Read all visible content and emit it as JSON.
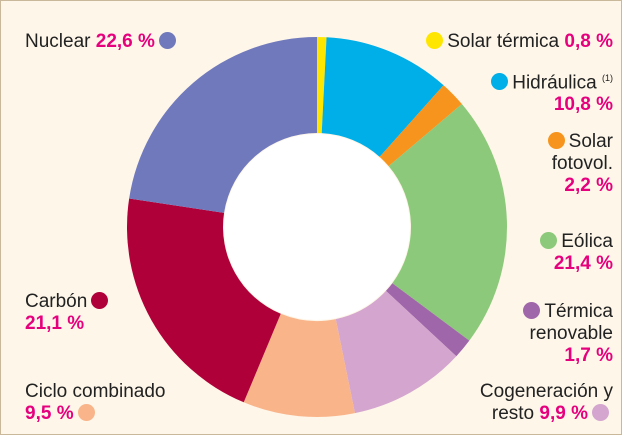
{
  "chart_data": {
    "type": "donut",
    "categories": [
      "Solar térmica",
      "Hidráulica",
      "Solar fotovol.",
      "Eólica",
      "Térmica renovable",
      "Cogeneración y resto",
      "Ciclo combinado",
      "Carbón",
      "Nuclear"
    ],
    "values": [
      0.8,
      10.8,
      2.2,
      21.4,
      1.7,
      9.9,
      9.5,
      21.1,
      22.6
    ],
    "value_labels": [
      "0,8 %",
      "10,8 %",
      "2,2 %",
      "21,4 %",
      "1,7 %",
      "9,9 %",
      "9,5 %",
      "21,1 %",
      "22,6 %"
    ],
    "colors": [
      "#ffe600",
      "#00aee8",
      "#f7941d",
      "#8cc97a",
      "#a066aa",
      "#d4a5cf",
      "#f9b48a",
      "#b0003a",
      "#7079bc"
    ],
    "annotation": "(1)"
  }
}
